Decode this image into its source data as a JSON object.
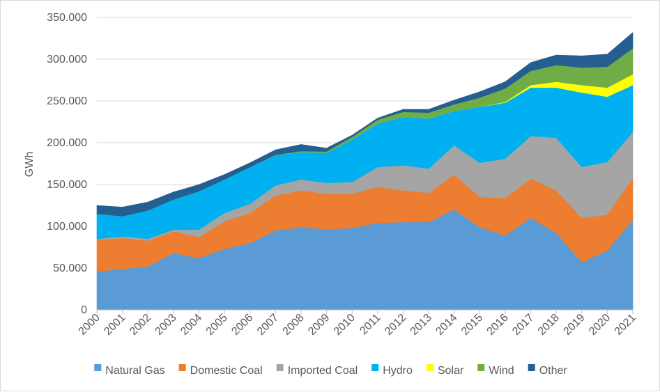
{
  "chart_data": {
    "type": "area",
    "stacked": true,
    "title": "",
    "xlabel": "",
    "ylabel": "GWh",
    "ylim": [
      0,
      350000
    ],
    "y_ticks": [
      0,
      50000,
      100000,
      150000,
      200000,
      250000,
      300000,
      350000
    ],
    "y_tick_labels": [
      "0",
      "50.000",
      "100.000",
      "150.000",
      "200.000",
      "250.000",
      "300.000",
      "350.000"
    ],
    "grid": "horizontal",
    "legend_position": "bottom",
    "categories": [
      "2000",
      "2001",
      "2002",
      "2003",
      "2004",
      "2005",
      "2006",
      "2007",
      "2008",
      "2009",
      "2010",
      "2011",
      "2012",
      "2013",
      "2014",
      "2015",
      "2016",
      "2017",
      "2018",
      "2019",
      "2020",
      "2021"
    ],
    "series": [
      {
        "name": "Natural Gas",
        "color": "#5b9bd5",
        "values": [
          46000,
          49000,
          52000,
          68000,
          62000,
          73000,
          80000,
          95000,
          99000,
          96500,
          98000,
          104000,
          105000,
          105000,
          120000,
          99000,
          89000,
          110000,
          92000,
          57000,
          71000,
          108000
        ]
      },
      {
        "name": "Domestic Coal",
        "color": "#ed7d31",
        "values": [
          38000,
          37000,
          31000,
          26000,
          25000,
          33000,
          36000,
          42000,
          44000,
          42500,
          41000,
          43000,
          38000,
          35000,
          42000,
          36000,
          45000,
          47000,
          51000,
          53000,
          43000,
          50000
        ]
      },
      {
        "name": "Imported Coal",
        "color": "#a5a5a5",
        "values": [
          1000,
          2000,
          2000,
          2000,
          9000,
          10000,
          11000,
          12000,
          13000,
          13000,
          14000,
          24000,
          30000,
          29000,
          35000,
          41000,
          47000,
          51000,
          63000,
          61000,
          63000,
          55000
        ]
      },
      {
        "name": "Hydro",
        "color": "#00b0f0",
        "values": [
          30000,
          24000,
          34000,
          36000,
          46000,
          40000,
          44000,
          36000,
          33000,
          36000,
          51000,
          52000,
          58000,
          60000,
          41000,
          67000,
          67000,
          58000,
          60000,
          89000,
          78000,
          56000
        ]
      },
      {
        "name": "Solar",
        "color": "#ffff00",
        "values": [
          0,
          0,
          0,
          0,
          0,
          0,
          0,
          0,
          0,
          0,
          0,
          0,
          0,
          0,
          0,
          0,
          1000,
          3000,
          7000,
          9000,
          11000,
          13000
        ]
      },
      {
        "name": "Wind",
        "color": "#70ad47",
        "values": [
          0,
          0,
          0,
          0,
          0,
          0,
          0,
          500,
          1000,
          1500,
          3000,
          4500,
          6000,
          7000,
          8000,
          11000,
          16000,
          17000,
          20000,
          21000,
          25000,
          31000
        ]
      },
      {
        "name": "Other",
        "color": "#255e91",
        "values": [
          10000,
          11000,
          10000,
          9000,
          8000,
          6000,
          5000,
          6000,
          8000,
          4000,
          2000,
          2000,
          3000,
          4000,
          5000,
          7000,
          8000,
          10000,
          12000,
          14000,
          15000,
          19000
        ]
      }
    ]
  }
}
